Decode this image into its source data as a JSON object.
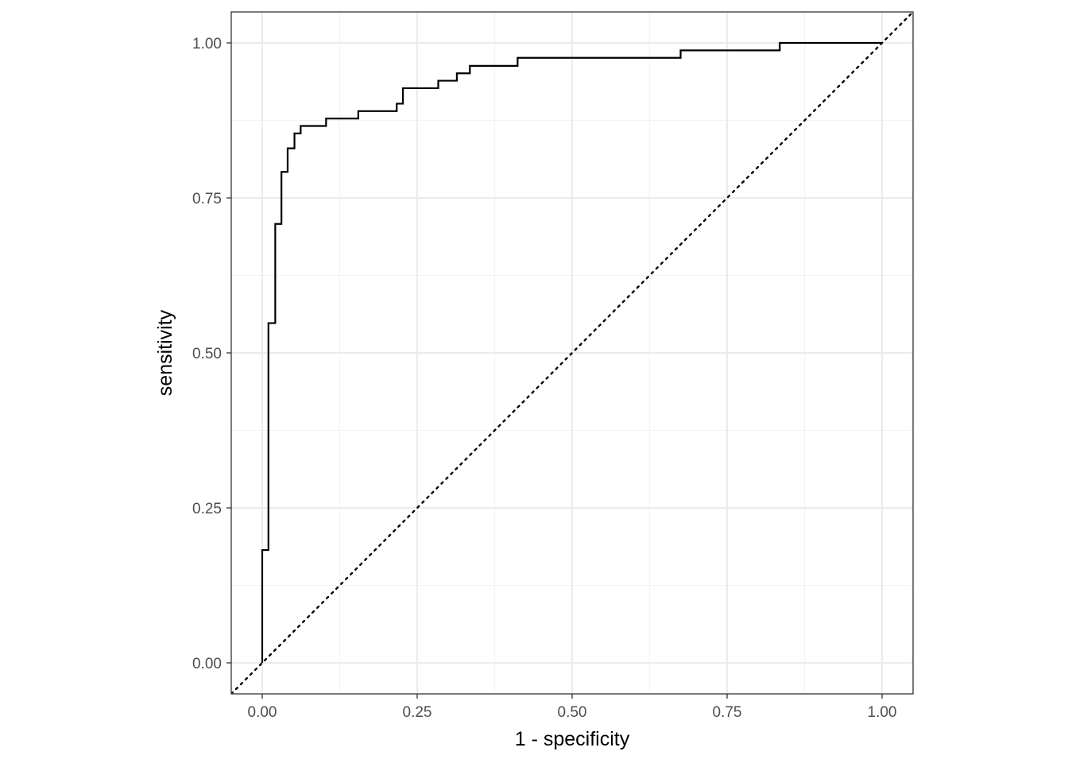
{
  "chart_data": {
    "type": "line",
    "xlabel": "1 - specificity",
    "ylabel": "sensitivity",
    "xlim": [
      -0.05,
      1.05
    ],
    "ylim": [
      -0.05,
      1.05
    ],
    "x_ticks": [
      "0.00",
      "0.25",
      "0.50",
      "0.75",
      "1.00"
    ],
    "y_ticks": [
      "0.00",
      "0.25",
      "0.50",
      "0.75",
      "1.00"
    ],
    "grid": true,
    "series": [
      {
        "style": "step",
        "color": "#000000",
        "x": [
          0.0,
          0.0,
          0.0,
          0.01,
          0.01,
          0.021,
          0.021,
          0.031,
          0.031,
          0.041,
          0.041,
          0.052,
          0.052,
          0.062,
          0.062,
          0.103,
          0.103,
          0.155,
          0.155,
          0.217,
          0.217,
          0.227,
          0.227,
          0.284,
          0.284,
          0.314,
          0.314,
          0.335,
          0.335,
          0.412,
          0.412,
          0.675,
          0.675,
          0.835,
          0.835,
          1.0
        ],
        "y": [
          0.0,
          0.182,
          0.182,
          0.182,
          0.548,
          0.548,
          0.708,
          0.708,
          0.792,
          0.792,
          0.83,
          0.83,
          0.854,
          0.854,
          0.866,
          0.866,
          0.878,
          0.878,
          0.89,
          0.89,
          0.902,
          0.902,
          0.927,
          0.927,
          0.939,
          0.939,
          0.951,
          0.951,
          0.963,
          0.963,
          0.976,
          0.976,
          0.988,
          0.988,
          1.0,
          1.0
        ]
      },
      {
        "style": "dotted",
        "color": "#000000",
        "x": [
          -0.05,
          1.05
        ],
        "y": [
          -0.05,
          1.05
        ]
      }
    ]
  },
  "colors": {
    "panel_border": "#333333",
    "grid_major": "#ebebeb",
    "grid_minor": "#f2f2f2",
    "tick_label": "#4d4d4d",
    "line": "#000000"
  }
}
